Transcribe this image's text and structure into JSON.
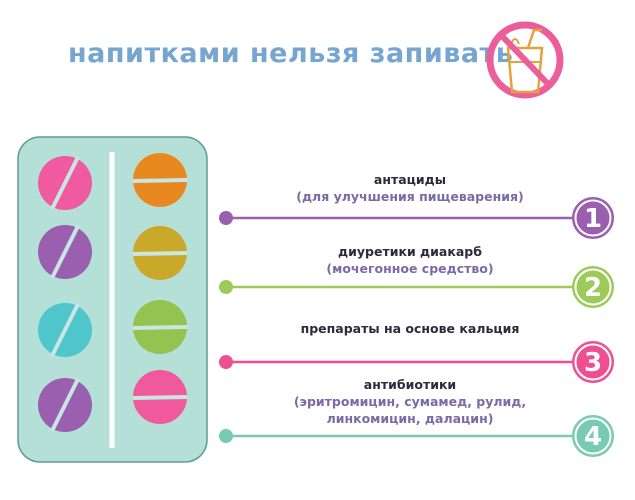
{
  "title": "напитками нельзя запивать",
  "no_drinks_icon": "no-drink-icon",
  "colors": {
    "title": "#76a6cf",
    "blister": "#b4e0d8",
    "purple": "#9a5fae",
    "green": "#9ccb5a",
    "pink": "#ee4f93",
    "teal": "#78cbb0",
    "orange": "#e7891f"
  },
  "items": [
    {
      "number": "1",
      "name": "антациды",
      "detail": "(для улучшения пищеварения)",
      "color": "#9a5fae"
    },
    {
      "number": "2",
      "name": "диуретики диакарб",
      "detail": "(мочегонное средство)",
      "color": "#9ccb5a"
    },
    {
      "number": "3",
      "name": "препараты на основе кальция",
      "detail": "",
      "color": "#ee4f93"
    },
    {
      "number": "4",
      "name": "антибиотики",
      "detail": "(эритромицин, сумамед, рулид,",
      "detail2": "линкомицин, далацин)",
      "color": "#78cbb0"
    }
  ]
}
